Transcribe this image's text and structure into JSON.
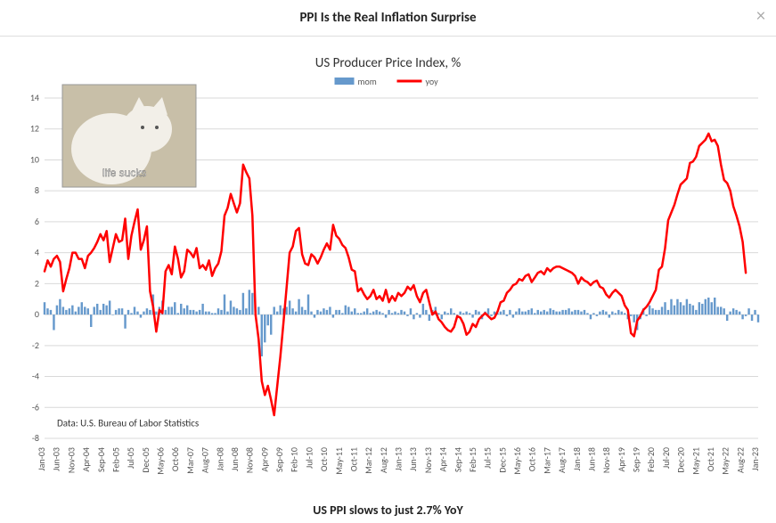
{
  "header": {
    "title": "PPI Is the Real Inflation Surprise",
    "close_glyph": "×"
  },
  "footer": {
    "caption": "US PPI slows to just 2.7% YoY"
  },
  "chart": {
    "title": "US Producer Price Index, %",
    "source_note": "Data: U.S. Bureau of Labor Statistics",
    "inset_caption": "life sucks",
    "legend": [
      {
        "label": "mom",
        "color": "#6699cc",
        "type": "bar"
      },
      {
        "label": "yoy",
        "color": "#ff0000",
        "type": "line"
      }
    ],
    "colors": {
      "mom_bar": "#6699cc",
      "yoy_line": "#ff0000",
      "grid": "#d9d9d9",
      "axis_text": "#555555",
      "background": "#ffffff"
    },
    "y_axis": {
      "min": -8,
      "max": 14,
      "step": 2
    },
    "x_labels": [
      "Jan-03",
      "Jun-03",
      "Nov-03",
      "Apr-04",
      "Sep-04",
      "Feb-05",
      "Jul-05",
      "Dec-05",
      "May-06",
      "Oct-06",
      "Mar-07",
      "Aug-07",
      "Jan-08",
      "Jun-08",
      "Nov-08",
      "Apr-09",
      "Sep-09",
      "Feb-10",
      "Jul-10",
      "Oct-10",
      "May-11",
      "Oct-11",
      "Mar-12",
      "Aug-12",
      "Jan-13",
      "Jun-13",
      "Nov-13",
      "Apr-14",
      "Sep-14",
      "Feb-15",
      "Jul-15",
      "Dec-15",
      "May-16",
      "Oct-16",
      "Mar-17",
      "Aug-17",
      "Jan-18",
      "Jun-18",
      "Nov-18",
      "Apr-19",
      "Sep-19",
      "Feb-20",
      "Jul-20",
      "Dec-20",
      "May-21",
      "Oct-21",
      "May-22",
      "Aug-22",
      "Jan-23"
    ],
    "mom": [
      0.8,
      0.4,
      0.3,
      -1.0,
      0.6,
      1.0,
      0.5,
      0.3,
      0.4,
      0.6,
      0.2,
      0.5,
      0.8,
      0.5,
      0.4,
      -0.8,
      0.5,
      0.7,
      0.3,
      0.7,
      0.6,
      0.9,
      0.0,
      0.3,
      0.4,
      0.4,
      -0.9,
      0.3,
      0.1,
      0.5,
      0.2,
      -0.2,
      0.2,
      0.4,
      0.3,
      1.3,
      0.2,
      0.5,
      0.9,
      0.3,
      0.5,
      0.5,
      0.8,
      0.1,
      0.7,
      0.4,
      0.6,
      0.3,
      0.3,
      0.2,
      0.3,
      0.7,
      0.2,
      0.2,
      0.1,
      0.1,
      0.4,
      0.3,
      1.3,
      0.2,
      0.9,
      0.5,
      0.4,
      0.3,
      1.4,
      0.4,
      1.6,
      1.4,
      0.3,
      0.5,
      -2.7,
      -1.8,
      -0.7,
      -1.3,
      0.5,
      0.2,
      0.6,
      0.4,
      0.5,
      0.9,
      0.4,
      0.2,
      1.0,
      0.5,
      0.3,
      1.3,
      0.2,
      -0.2,
      0.3,
      0.2,
      0.4,
      0.3,
      0.5,
      -0.2,
      0.3,
      0.3,
      0.1,
      0.6,
      0.5,
      0.2,
      0.4,
      0.1,
      0.1,
      0.2,
      0.4,
      0.1,
      0.2,
      0.3,
      0.2,
      0.1,
      -0.2,
      0.3,
      0.1,
      0.2,
      0.1,
      0.3,
      0.2,
      -0.1,
      0.4,
      -0.3,
      0.1,
      -0.2,
      0.7,
      0.3,
      -0.4,
      0.3,
      0.5,
      0.1,
      -0.3,
      0.2,
      0.1,
      0.4,
      0.1,
      0.0,
      0.2,
      0.1,
      0.2,
      0.1,
      -0.2,
      0.3,
      0.2,
      -0.3,
      0.2,
      0.4,
      -0.1,
      0.2,
      0.1,
      0.2,
      0.3,
      -0.1,
      0.3,
      -0.2,
      0.2,
      0.4,
      0.2,
      0.2,
      0.3,
      0.4,
      0.1,
      0.3,
      0.2,
      0.3,
      0.2,
      0.4,
      0.3,
      0.2,
      0.2,
      0.3,
      0.3,
      0.4,
      0.2,
      0.3,
      0.3,
      0.2,
      0.3,
      0.1,
      -0.3,
      0.1,
      -0.1,
      0.2,
      0.3,
      0.2,
      -0.2,
      0.2,
      0.1,
      0.3,
      0.2,
      0.1,
      -0.3,
      -0.1,
      -0.5,
      -1.0,
      -0.3,
      0.4,
      -0.1,
      0.6,
      0.4,
      0.3,
      0.3,
      0.5,
      0.8,
      0.3,
      1.0,
      0.6,
      1.0,
      0.8,
      0.6,
      1.0,
      0.7,
      0.6,
      0.3,
      0.8,
      0.7,
      1.0,
      1.1,
      0.8,
      1.1,
      0.5,
      0.5,
      0.4,
      -0.4,
      0.2,
      0.4,
      0.3,
      0.2,
      -0.3,
      -0.1,
      0.4,
      -0.4,
      0.3,
      -0.5
    ],
    "yoy": [
      2.8,
      3.5,
      3.1,
      3.6,
      3.8,
      3.4,
      1.5,
      2.3,
      3.0,
      4.0,
      4.0,
      3.6,
      3.6,
      3.0,
      3.8,
      4.0,
      4.3,
      4.7,
      5.2,
      4.8,
      5.4,
      3.4,
      4.3,
      5.2,
      4.7,
      4.8,
      6.2,
      3.6,
      5.1,
      6.0,
      6.8,
      4.2,
      4.8,
      5.7,
      1.5,
      0.5,
      -1.1,
      0.3,
      0.1,
      2.8,
      3.2,
      2.6,
      4.4,
      3.6,
      2.4,
      2.8,
      4.2,
      4.0,
      3.7,
      4.3,
      3.0,
      3.2,
      2.9,
      3.5,
      2.5,
      3.0,
      3.3,
      4.1,
      6.4,
      6.9,
      7.8,
      7.2,
      6.6,
      7.2,
      9.7,
      9.2,
      8.8,
      6.4,
      0.0,
      -1.6,
      -4.3,
      -5.2,
      -4.6,
      -5.5,
      -6.5,
      -4.6,
      -2.7,
      -0.5,
      1.7,
      4.0,
      4.4,
      5.4,
      5.6,
      3.9,
      3.3,
      3.2,
      3.9,
      3.7,
      3.3,
      3.7,
      4.2,
      4.6,
      4.2,
      5.8,
      5.1,
      4.9,
      4.5,
      4.3,
      3.7,
      2.9,
      2.8,
      1.5,
      1.7,
      1.3,
      1.0,
      1.2,
      1.6,
      1.0,
      1.2,
      0.9,
      1.6,
      0.8,
      1.2,
      0.9,
      1.4,
      1.2,
      1.4,
      1.8,
      1.6,
      1.9,
      1.2,
      0.8,
      1.4,
      1.6,
      0.8,
      0.0,
      0.2,
      -0.3,
      -0.5,
      -0.8,
      -1.0,
      -1.1,
      -0.8,
      -0.1,
      -0.2,
      -0.6,
      -1.3,
      -1.1,
      -0.6,
      -0.8,
      -0.3,
      -0.1,
      0.1,
      -0.1,
      -0.3,
      -0.2,
      0.2,
      0.8,
      0.9,
      1.4,
      1.6,
      1.9,
      2.0,
      2.3,
      2.2,
      2.5,
      2.6,
      2.1,
      2.4,
      2.7,
      2.8,
      2.6,
      3.0,
      2.8,
      3.0,
      3.1,
      3.1,
      3.0,
      2.9,
      2.8,
      2.7,
      2.5,
      2.0,
      2.4,
      2.2,
      2.1,
      1.9,
      2.1,
      2.2,
      1.8,
      1.7,
      1.3,
      1.1,
      1.4,
      1.6,
      1.4,
      1.2,
      0.6,
      0.3,
      -1.2,
      -1.4,
      -0.4,
      -0.1,
      0.3,
      0.5,
      0.8,
      1.2,
      1.6,
      2.9,
      3.1,
      4.3,
      6.1,
      6.6,
      7.1,
      7.8,
      8.4,
      8.6,
      8.8,
      9.8,
      9.9,
      10.2,
      10.9,
      11.1,
      11.3,
      11.7,
      11.2,
      11.3,
      10.9,
      9.7,
      8.7,
      8.5,
      8.0,
      7.0,
      6.4,
      5.7,
      4.7,
      2.7
    ],
    "line_width": 2.5,
    "bar_width_ratio": 0.7,
    "title_fontsize": 15,
    "tick_fontsize": 10
  }
}
